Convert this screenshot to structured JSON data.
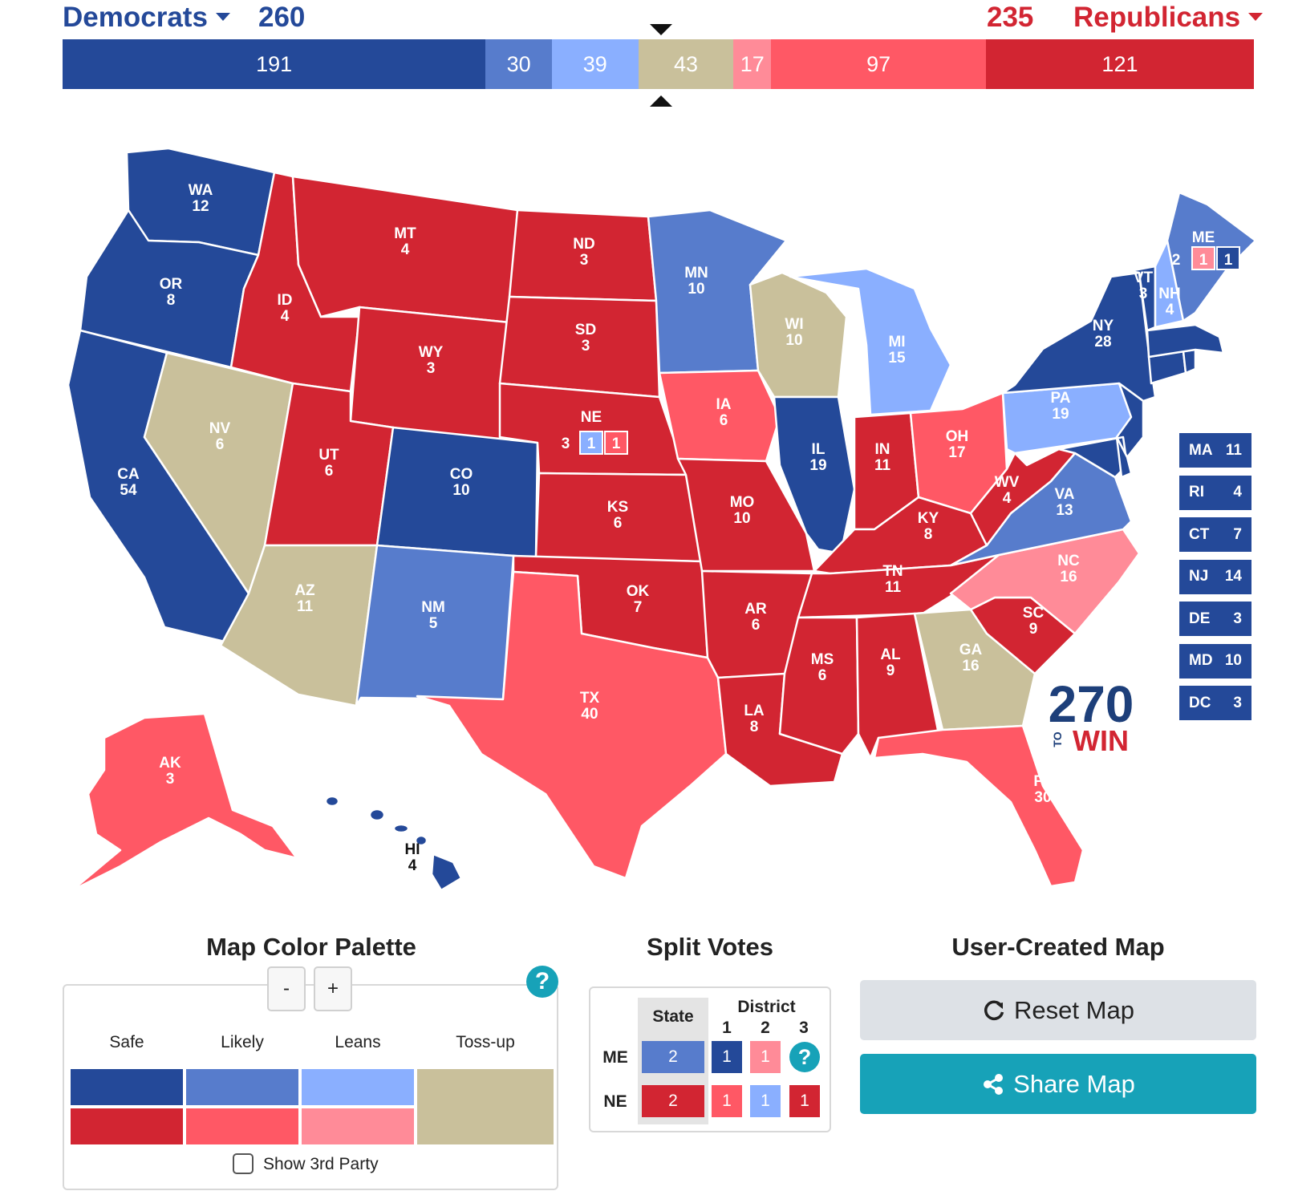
{
  "header": {
    "dem_label": "Democrats",
    "dem_total": "260",
    "rep_label": "Republicans",
    "rep_total": "235"
  },
  "bar_segments": [
    {
      "label": "191",
      "value": 191,
      "color": "#244999"
    },
    {
      "label": "30",
      "value": 30,
      "color": "#577ccc"
    },
    {
      "label": "39",
      "value": 39,
      "color": "#8aafff"
    },
    {
      "label": "43",
      "value": 43,
      "color": "#c9c09b"
    },
    {
      "label": "17",
      "value": 17,
      "color": "#ff8b98"
    },
    {
      "label": "97",
      "value": 97,
      "color": "#ff5865"
    },
    {
      "label": "121",
      "value": 121,
      "color": "#d22532"
    }
  ],
  "map_labels": {
    "WA": "WA",
    "WA_ev": "12",
    "OR": "OR",
    "OR_ev": "8",
    "CA": "CA",
    "CA_ev": "54",
    "NV": "NV",
    "NV_ev": "6",
    "ID": "ID",
    "ID_ev": "4",
    "MT": "MT",
    "MT_ev": "4",
    "WY": "WY",
    "WY_ev": "3",
    "UT": "UT",
    "UT_ev": "6",
    "AZ": "AZ",
    "AZ_ev": "11",
    "CO": "CO",
    "CO_ev": "10",
    "NM": "NM",
    "NM_ev": "5",
    "ND": "ND",
    "ND_ev": "3",
    "SD": "SD",
    "SD_ev": "3",
    "NE": "NE",
    "NE_ev": "3",
    "KS": "KS",
    "KS_ev": "6",
    "OK": "OK",
    "OK_ev": "7",
    "TX": "TX",
    "TX_ev": "40",
    "MN": "MN",
    "MN_ev": "10",
    "IA": "IA",
    "IA_ev": "6",
    "MO": "MO",
    "MO_ev": "10",
    "AR": "AR",
    "AR_ev": "6",
    "LA": "LA",
    "LA_ev": "8",
    "WI": "WI",
    "WI_ev": "10",
    "IL": "IL",
    "IL_ev": "19",
    "MI": "MI",
    "MI_ev": "15",
    "IN": "IN",
    "IN_ev": "11",
    "OH": "OH",
    "OH_ev": "17",
    "KY": "KY",
    "KY_ev": "8",
    "TN": "TN",
    "TN_ev": "11",
    "MS": "MS",
    "MS_ev": "6",
    "AL": "AL",
    "AL_ev": "9",
    "GA": "GA",
    "GA_ev": "16",
    "FL": "FL",
    "FL_ev": "30",
    "SC": "SC",
    "SC_ev": "9",
    "NC": "NC",
    "NC_ev": "16",
    "VA": "VA",
    "VA_ev": "13",
    "WV": "WV",
    "WV_ev": "4",
    "PA": "PA",
    "PA_ev": "19",
    "NY": "NY",
    "NY_ev": "28",
    "VT": "VT",
    "VT_ev": "3",
    "NH": "NH",
    "NH_ev": "4",
    "ME": "ME",
    "ME_ev": "2",
    "AK": "AK",
    "AK_ev": "3",
    "HI": "HI",
    "HI_ev": "4",
    "ne_d1": "1",
    "ne_d2": "1",
    "me_d1": "1",
    "me_d2": "1"
  },
  "small_states": [
    {
      "abbr": "MA",
      "ev": "11"
    },
    {
      "abbr": "RI",
      "ev": "4"
    },
    {
      "abbr": "CT",
      "ev": "7"
    },
    {
      "abbr": "NJ",
      "ev": "14"
    },
    {
      "abbr": "DE",
      "ev": "3"
    },
    {
      "abbr": "MD",
      "ev": "10"
    },
    {
      "abbr": "DC",
      "ev": "3"
    }
  ],
  "logo": {
    "number": "270",
    "to": "TO",
    "win": "WIN"
  },
  "palette": {
    "title": "Map Color Palette",
    "minus": "-",
    "plus": "+",
    "help": "?",
    "levels": [
      "Safe",
      "Likely",
      "Leans",
      "Toss-up"
    ],
    "show_third_party": "Show 3rd Party",
    "colors": {
      "dem_safe": "#244999",
      "dem_likely": "#577ccc",
      "dem_leans": "#8aafff",
      "rep_safe": "#d22532",
      "rep_likely": "#ff5865",
      "rep_leans": "#ff8b98",
      "tossup": "#c9c09b"
    }
  },
  "split_votes": {
    "title": "Split Votes",
    "state_header": "State",
    "district_header": "District",
    "district_numbers": [
      "1",
      "2",
      "3"
    ],
    "help": "?",
    "rows": [
      {
        "state": "ME",
        "state_value": "2",
        "districts": [
          "1",
          "1"
        ]
      },
      {
        "state": "NE",
        "state_value": "2",
        "districts": [
          "1",
          "1",
          "1"
        ]
      }
    ]
  },
  "user_map": {
    "title": "User-Created Map",
    "reset_label": "Reset Map",
    "share_label": "Share Map",
    "reset_icon": "refresh-icon",
    "share_icon": "share-icon"
  }
}
